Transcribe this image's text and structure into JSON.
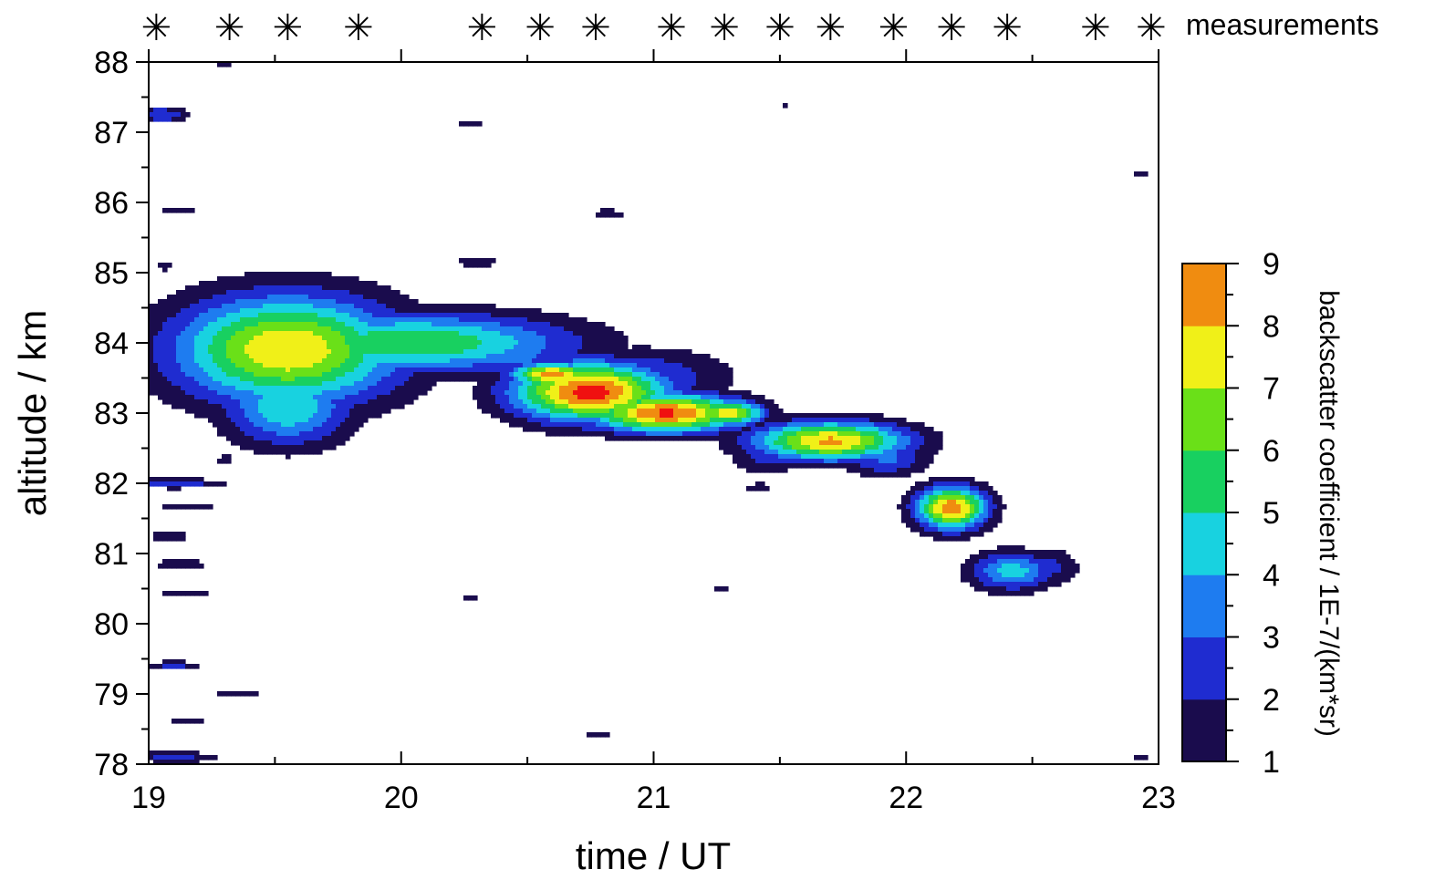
{
  "chart_data": {
    "type": "heatmap",
    "title": "",
    "xlabel": "time / UT",
    "ylabel": "altitude / km",
    "xlim": [
      19,
      23
    ],
    "ylim": [
      78,
      88
    ],
    "x_ticks": [
      19,
      20,
      21,
      22,
      23
    ],
    "y_ticks": [
      78,
      79,
      80,
      81,
      82,
      83,
      84,
      85,
      86,
      87,
      88
    ],
    "measurements_label": "measurements",
    "measurement_marker": "✳",
    "measurement_times": [
      19.03,
      19.32,
      19.55,
      19.83,
      20.32,
      20.55,
      20.77,
      21.07,
      21.28,
      21.5,
      21.7,
      21.95,
      22.18,
      22.4,
      22.75,
      22.97
    ],
    "colorbar": {
      "label": "backscatter coefficient / 1E-7/(km*sr)",
      "min": 1,
      "max": 9,
      "ticks": [
        1,
        2,
        3,
        4,
        5,
        6,
        7,
        8,
        9
      ],
      "colors": [
        "#1a0c4d",
        "#1f2cd0",
        "#1e7cf0",
        "#18d2e0",
        "#18d060",
        "#6ae018",
        "#f0f018",
        "#f08c10",
        "#f01010"
      ]
    },
    "blobs": [
      {
        "t": 19.55,
        "alt": 83.9,
        "st": 0.32,
        "sa": 0.55,
        "peak": 8.0
      },
      {
        "t": 19.55,
        "alt": 83.1,
        "st": 0.18,
        "sa": 0.4,
        "peak": 5.0
      },
      {
        "t": 20.05,
        "alt": 84.0,
        "st": 0.45,
        "sa": 0.3,
        "peak": 6.0
      },
      {
        "t": 20.45,
        "alt": 83.8,
        "st": 0.15,
        "sa": 0.2,
        "peak": 3.5
      },
      {
        "t": 19.2,
        "alt": 84.05,
        "st": 0.1,
        "sa": 0.2,
        "peak": 3.0
      },
      {
        "t": 20.75,
        "alt": 83.3,
        "st": 0.22,
        "sa": 0.3,
        "peak": 9.5
      },
      {
        "t": 20.6,
        "alt": 83.55,
        "st": 0.12,
        "sa": 0.12,
        "peak": 8.5
      },
      {
        "t": 21.05,
        "alt": 83.0,
        "st": 0.22,
        "sa": 0.2,
        "peak": 9.2
      },
      {
        "t": 21.3,
        "alt": 83.0,
        "st": 0.1,
        "sa": 0.13,
        "peak": 7.8
      },
      {
        "t": 20.95,
        "alt": 83.5,
        "st": 0.25,
        "sa": 0.3,
        "peak": 3.0
      },
      {
        "t": 21.7,
        "alt": 82.6,
        "st": 0.22,
        "sa": 0.2,
        "peak": 8.2
      },
      {
        "t": 21.92,
        "alt": 82.35,
        "st": 0.12,
        "sa": 0.18,
        "peak": 3.2
      },
      {
        "t": 21.45,
        "alt": 82.4,
        "st": 0.1,
        "sa": 0.2,
        "peak": 2.5
      },
      {
        "t": 22.18,
        "alt": 81.65,
        "st": 0.1,
        "sa": 0.22,
        "peak": 8.8
      },
      {
        "t": 22.42,
        "alt": 80.75,
        "st": 0.12,
        "sa": 0.2,
        "peak": 4.5
      },
      {
        "t": 22.55,
        "alt": 80.8,
        "st": 0.1,
        "sa": 0.2,
        "peak": 2.4
      }
    ],
    "patches": [
      {
        "t": 19.05,
        "alt": 87.25,
        "st": 0.08,
        "sa": 0.08,
        "peak": 3.0
      },
      {
        "t": 19.3,
        "alt": 87.95,
        "st": 0.05,
        "sa": 0.04,
        "peak": 1.3
      },
      {
        "t": 19.3,
        "alt": 86.7,
        "st": 0.05,
        "sa": 0.04,
        "peak": 1.3
      },
      {
        "t": 20.28,
        "alt": 87.1,
        "st": 0.1,
        "sa": 0.04,
        "peak": 1.3
      },
      {
        "t": 21.52,
        "alt": 87.4,
        "st": 0.04,
        "sa": 0.03,
        "peak": 1.2
      },
      {
        "t": 19.12,
        "alt": 85.9,
        "st": 0.06,
        "sa": 0.03,
        "peak": 2.0
      },
      {
        "t": 19.97,
        "alt": 85.78,
        "st": 0.14,
        "sa": 0.03,
        "peak": 1.2
      },
      {
        "t": 20.82,
        "alt": 85.85,
        "st": 0.09,
        "sa": 0.06,
        "peak": 1.3
      },
      {
        "t": 19.06,
        "alt": 85.1,
        "st": 0.04,
        "sa": 0.08,
        "peak": 1.3
      },
      {
        "t": 20.3,
        "alt": 85.15,
        "st": 0.1,
        "sa": 0.08,
        "peak": 1.3
      },
      {
        "t": 19.1,
        "alt": 82.0,
        "st": 0.14,
        "sa": 0.05,
        "peak": 2.8
      },
      {
        "t": 19.15,
        "alt": 81.65,
        "st": 0.12,
        "sa": 0.05,
        "peak": 1.5
      },
      {
        "t": 19.08,
        "alt": 81.25,
        "st": 0.06,
        "sa": 0.05,
        "peak": 2.2
      },
      {
        "t": 19.12,
        "alt": 80.85,
        "st": 0.09,
        "sa": 0.05,
        "peak": 1.9
      },
      {
        "t": 19.15,
        "alt": 80.45,
        "st": 0.1,
        "sa": 0.05,
        "peak": 1.6
      },
      {
        "t": 19.1,
        "alt": 79.4,
        "st": 0.08,
        "sa": 0.05,
        "peak": 2.4
      },
      {
        "t": 19.35,
        "alt": 79.0,
        "st": 0.14,
        "sa": 0.03,
        "peak": 1.2
      },
      {
        "t": 19.15,
        "alt": 78.6,
        "st": 0.1,
        "sa": 0.05,
        "peak": 1.3
      },
      {
        "t": 19.1,
        "alt": 78.1,
        "st": 0.12,
        "sa": 0.06,
        "peak": 2.5
      },
      {
        "t": 19.3,
        "alt": 82.35,
        "st": 0.06,
        "sa": 0.05,
        "peak": 1.3
      },
      {
        "t": 21.88,
        "alt": 80.0,
        "st": 0.02,
        "sa": 0.02,
        "peak": 1.1
      },
      {
        "t": 20.27,
        "alt": 80.37,
        "st": 0.06,
        "sa": 0.02,
        "peak": 1.1
      },
      {
        "t": 21.27,
        "alt": 80.5,
        "st": 0.05,
        "sa": 0.03,
        "peak": 1.2
      },
      {
        "t": 21.68,
        "alt": 79.3,
        "st": 0.08,
        "sa": 0.04,
        "peak": 1.3
      },
      {
        "t": 20.78,
        "alt": 78.42,
        "st": 0.07,
        "sa": 0.03,
        "peak": 1.2
      },
      {
        "t": 22.93,
        "alt": 86.4,
        "st": 0.03,
        "sa": 0.03,
        "peak": 1.3
      },
      {
        "t": 22.93,
        "alt": 78.1,
        "st": 0.03,
        "sa": 0.05,
        "peak": 1.3
      },
      {
        "t": 21.42,
        "alt": 81.95,
        "st": 0.07,
        "sa": 0.07,
        "peak": 1.3
      }
    ]
  }
}
